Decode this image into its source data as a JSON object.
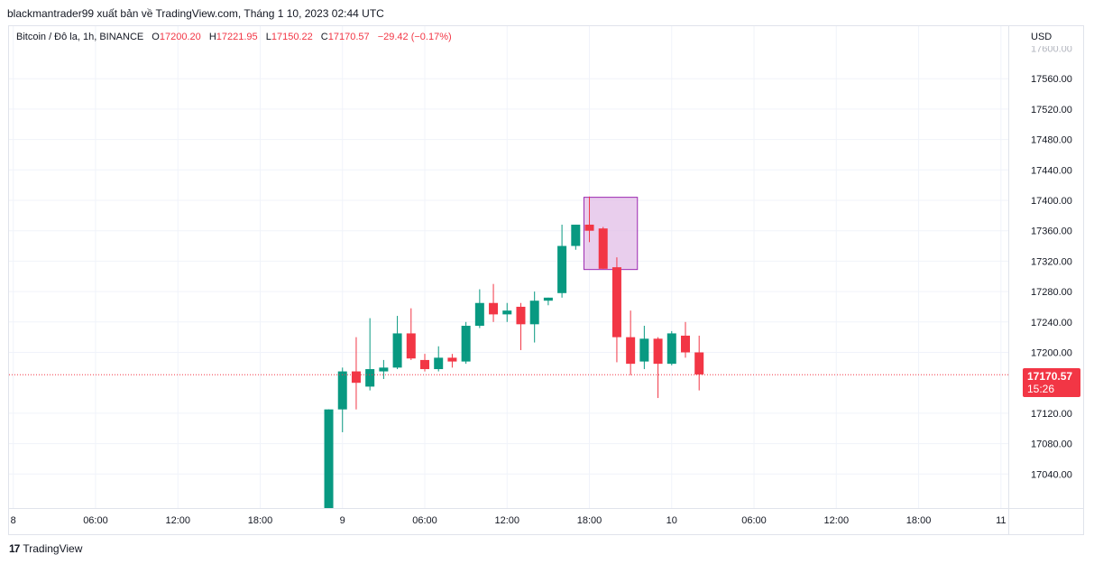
{
  "header": {
    "text": "blackmantrader99 xuất bản về TradingView.com, Tháng 1 10, 2023 02:44 UTC"
  },
  "legend": {
    "symbol": "Bitcoin / Đô la, 1h, BINANCE",
    "o_label": "O",
    "o_value": "17200.20",
    "h_label": "H",
    "h_value": "17221.95",
    "l_label": "L",
    "l_value": "17150.22",
    "c_label": "C",
    "c_value": "17170.57",
    "change": "−29.42 (−0.17%)"
  },
  "price_tag": {
    "value": "17170.57",
    "countdown": "15:26"
  },
  "footer": {
    "brand": "TradingView",
    "logo": "17"
  },
  "colors": {
    "up": "#089981",
    "down": "#f23645",
    "highlight_fill": "#e1bee7",
    "highlight_stroke": "#9c27b0"
  },
  "chart_data": {
    "type": "candlestick",
    "currency_label": "USD",
    "y_ticks": [
      17560,
      17520,
      17480,
      17440,
      17400,
      17360,
      17320,
      17280,
      17240,
      17200,
      17120,
      17080,
      17040
    ],
    "ylim": [
      17000,
      17610
    ],
    "x_labels": [
      {
        "idx": 0,
        "label": "8"
      },
      {
        "idx": 6,
        "label": "06:00"
      },
      {
        "idx": 12,
        "label": "12:00"
      },
      {
        "idx": 18,
        "label": "18:00"
      },
      {
        "idx": 24,
        "label": "9"
      },
      {
        "idx": 30,
        "label": "06:00"
      },
      {
        "idx": 36,
        "label": "12:00"
      },
      {
        "idx": 42,
        "label": "18:00"
      },
      {
        "idx": 48,
        "label": "10"
      },
      {
        "idx": 54,
        "label": "06:00"
      },
      {
        "idx": 60,
        "label": "12:00"
      },
      {
        "idx": 66,
        "label": "18:00"
      },
      {
        "idx": 72,
        "label": "11"
      }
    ],
    "candles": [
      {
        "idx": 23,
        "o": 16995,
        "h": 17125,
        "l": 16990,
        "c": 17125
      },
      {
        "idx": 24,
        "o": 17125,
        "h": 17180,
        "l": 17095,
        "c": 17175
      },
      {
        "idx": 25,
        "o": 17175,
        "h": 17220,
        "l": 17125,
        "c": 17160
      },
      {
        "idx": 26,
        "o": 17155,
        "h": 17245,
        "l": 17150,
        "c": 17178
      },
      {
        "idx": 27,
        "o": 17175,
        "h": 17190,
        "l": 17165,
        "c": 17180
      },
      {
        "idx": 28,
        "o": 17180,
        "h": 17248,
        "l": 17178,
        "c": 17225
      },
      {
        "idx": 29,
        "o": 17225,
        "h": 17258,
        "l": 17190,
        "c": 17192
      },
      {
        "idx": 30,
        "o": 17190,
        "h": 17198,
        "l": 17175,
        "c": 17178
      },
      {
        "idx": 31,
        "o": 17178,
        "h": 17208,
        "l": 17175,
        "c": 17193
      },
      {
        "idx": 32,
        "o": 17193,
        "h": 17198,
        "l": 17180,
        "c": 17188
      },
      {
        "idx": 33,
        "o": 17188,
        "h": 17240,
        "l": 17185,
        "c": 17235
      },
      {
        "idx": 34,
        "o": 17235,
        "h": 17283,
        "l": 17232,
        "c": 17265
      },
      {
        "idx": 35,
        "o": 17265,
        "h": 17290,
        "l": 17240,
        "c": 17250
      },
      {
        "idx": 36,
        "o": 17250,
        "h": 17265,
        "l": 17240,
        "c": 17255
      },
      {
        "idx": 37,
        "o": 17260,
        "h": 17265,
        "l": 17203,
        "c": 17237
      },
      {
        "idx": 38,
        "o": 17237,
        "h": 17280,
        "l": 17213,
        "c": 17268
      },
      {
        "idx": 39,
        "o": 17268,
        "h": 17272,
        "l": 17262,
        "c": 17272
      },
      {
        "idx": 40,
        "o": 17278,
        "h": 17368,
        "l": 17272,
        "c": 17340
      },
      {
        "idx": 41,
        "o": 17340,
        "h": 17368,
        "l": 17335,
        "c": 17368
      },
      {
        "idx": 42,
        "o": 17368,
        "h": 17405,
        "l": 17345,
        "c": 17360
      },
      {
        "idx": 43,
        "o": 17363,
        "h": 17365,
        "l": 17310,
        "c": 17310
      },
      {
        "idx": 44,
        "o": 17312,
        "h": 17325,
        "l": 17187,
        "c": 17220
      },
      {
        "idx": 45,
        "o": 17220,
        "h": 17255,
        "l": 17170,
        "c": 17185
      },
      {
        "idx": 46,
        "o": 17188,
        "h": 17235,
        "l": 17178,
        "c": 17218
      },
      {
        "idx": 47,
        "o": 17218,
        "h": 17220,
        "l": 17140,
        "c": 17185
      },
      {
        "idx": 48,
        "o": 17185,
        "h": 17228,
        "l": 17183,
        "c": 17225
      },
      {
        "idx": 49,
        "o": 17222,
        "h": 17240,
        "l": 17193,
        "c": 17200
      },
      {
        "idx": 50,
        "o": 17200,
        "h": 17222,
        "l": 17150,
        "c": 17171
      }
    ],
    "current_price": 17170.57,
    "highlight_box": {
      "idx_from": 41.6,
      "idx_to": 45.5,
      "price_high": 17404,
      "price_low": 17309
    }
  }
}
